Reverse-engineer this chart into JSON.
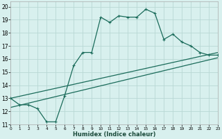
{
  "xlabel": "Humidex (Indice chaleur)",
  "bg_color": "#d8f0ee",
  "line_color": "#1a6b5a",
  "grid_color": "#b8d8d4",
  "xlim": [
    0,
    23
  ],
  "ylim": [
    11,
    20.4
  ],
  "xticks": [
    0,
    1,
    2,
    3,
    4,
    5,
    6,
    7,
    8,
    9,
    10,
    11,
    12,
    13,
    14,
    15,
    16,
    17,
    18,
    19,
    20,
    21,
    22,
    23
  ],
  "yticks": [
    11,
    12,
    13,
    14,
    15,
    16,
    17,
    18,
    19,
    20
  ],
  "line1_x": [
    0,
    1,
    2,
    3,
    4,
    5,
    6,
    7,
    8,
    9,
    10,
    11,
    12,
    13,
    14,
    15,
    16,
    17,
    18,
    19,
    20,
    21,
    22,
    23
  ],
  "line1_y": [
    13.0,
    12.5,
    12.5,
    12.2,
    11.2,
    11.2,
    13.2,
    15.5,
    16.5,
    16.5,
    19.2,
    18.8,
    19.3,
    19.2,
    19.2,
    19.8,
    19.5,
    17.5,
    17.9,
    17.3,
    17.0,
    16.5,
    16.3,
    16.3
  ],
  "line2_x": [
    0,
    23
  ],
  "line2_y": [
    12.3,
    16.1
  ],
  "line3_x": [
    0,
    23
  ],
  "line3_y": [
    13.0,
    16.5
  ]
}
